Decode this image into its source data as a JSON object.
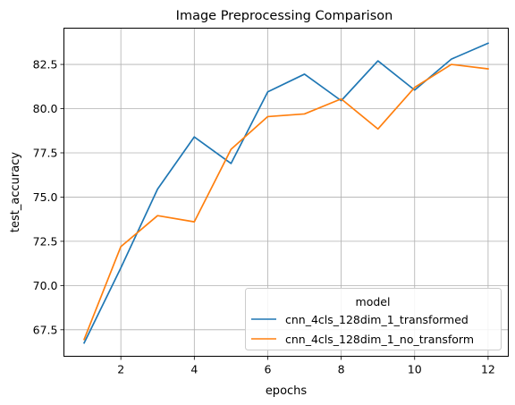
{
  "chart_data": {
    "type": "line",
    "title": "Image Preprocessing Comparison",
    "xlabel": "epochs",
    "ylabel": "test_accuracy",
    "xlim": [
      0.45,
      12.55
    ],
    "ylim": [
      66.0,
      84.55
    ],
    "xticks": [
      2,
      4,
      6,
      8,
      10,
      12
    ],
    "yticks": [
      67.5,
      70.0,
      72.5,
      75.0,
      77.5,
      80.0,
      82.5
    ],
    "ytick_labels": [
      "67.5",
      "70.0",
      "72.5",
      "75.0",
      "77.5",
      "80.0",
      "82.5"
    ],
    "grid": true,
    "legend": {
      "title": "model",
      "placement": "lower-right"
    },
    "x": [
      1,
      2,
      3,
      4,
      5,
      6,
      7,
      8,
      9,
      10,
      11,
      12
    ],
    "series": [
      {
        "name": "cnn_4cls_128dim_1_transformed",
        "color": "#1f77b4",
        "values": [
          66.75,
          71.0,
          75.45,
          78.4,
          76.9,
          80.95,
          81.95,
          80.45,
          82.7,
          81.05,
          82.8,
          83.7
        ]
      },
      {
        "name": "cnn_4cls_128dim_1_no_transform",
        "color": "#ff7f0e",
        "values": [
          66.95,
          72.2,
          73.95,
          73.6,
          77.7,
          79.55,
          79.7,
          80.55,
          78.85,
          81.2,
          82.5,
          82.25
        ]
      }
    ]
  }
}
